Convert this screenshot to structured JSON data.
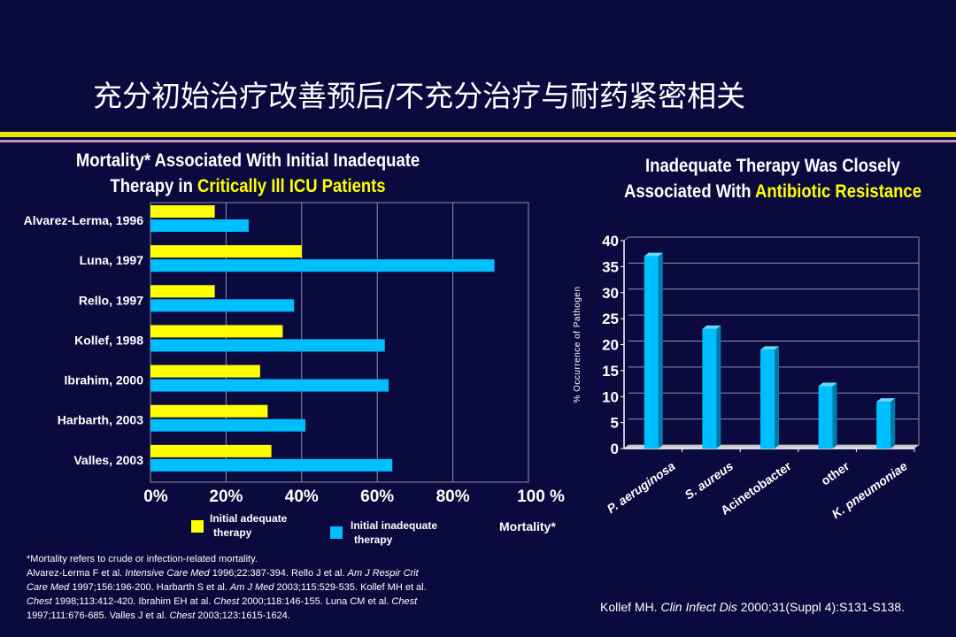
{
  "slide": {
    "title": "充分初始治疗改善预后/不充分治疗与耐药紧密相关",
    "colors": {
      "background": "#0a0a3e",
      "accent_yellow": "#ffff00",
      "accent_cyan": "#00bfff",
      "accent_purple": "#c090c8"
    }
  },
  "left_chart": {
    "title_line1": "Mortality* Associated With Initial Inadequate",
    "title_line2_plain": "Therapy in ",
    "title_line2_highlight": "Critically Ill ICU Patients",
    "x_axis_label": "Mortality*",
    "legend": {
      "adequate_line1": "Initial adequate",
      "adequate_line2": "therapy",
      "inadequate_line1": "Initial inadequate",
      "inadequate_line2": "therapy"
    }
  },
  "right_chart": {
    "title_line1": "Inadequate Therapy Was Closely",
    "title_line2_plain": "Associated With ",
    "title_line2_highlight": "Antibiotic Resistance",
    "y_axis_label": "% Occurrence of Pathogen"
  },
  "chart_data": [
    {
      "type": "bar",
      "orientation": "horizontal",
      "title": "Mortality* Associated With Initial Inadequate Therapy in Critically Ill ICU Patients",
      "xlabel": "Mortality*",
      "categories": [
        "Alvarez-Lerma, 1996",
        "Luna, 1997",
        "Rello, 1997",
        "Kollef, 1998",
        "Ibrahim, 2000",
        "Harbarth, 2003",
        "Valles, 2003"
      ],
      "series": [
        {
          "name": "Initial adequate therapy",
          "color": "#ffff00",
          "values": [
            17,
            40,
            17,
            35,
            29,
            31,
            32
          ]
        },
        {
          "name": "Initial inadequate therapy",
          "color": "#00bfff",
          "values": [
            26,
            91,
            38,
            62,
            63,
            41,
            64
          ]
        }
      ],
      "xlim": [
        0,
        100
      ],
      "x_tick_labels": [
        "0%",
        "20%",
        "40%",
        "60%",
        "80%",
        "100 %"
      ],
      "grid": "vertical"
    },
    {
      "type": "bar",
      "ylabel": "% Occurrence of Pathogen",
      "categories": [
        "P. aeruginosa",
        "S. aureus",
        "Acinetobacter",
        "other",
        "K. pneumoniae"
      ],
      "values": [
        37,
        23,
        19,
        12,
        9
      ],
      "color": "#00bfff",
      "ylim": [
        0,
        40
      ],
      "y_ticks": [
        0,
        5,
        10,
        15,
        20,
        25,
        30,
        35,
        40
      ],
      "grid": "horizontal"
    }
  ],
  "footnote": {
    "line1": "*Mortality refers to crude or infection-related mortality.",
    "line2_a": "Alvarez-Lerma F et al. ",
    "line2_b": "Intensive Care Med",
    "line2_c": " 1996;22:387-394. Rello J et al. ",
    "line2_d": "Am J Respir Crit",
    "line3_a": "Care Med",
    "line3_b": " 1997;156:196-200. Harbarth S et al. ",
    "line3_c": "Am J Med",
    "line3_d": " 2003;115:529-535. Kollef  MH et al.",
    "line4_a": "Chest",
    "line4_b": " 1998;113:412-420. Ibrahim EH at al. ",
    "line4_c": "Chest",
    "line4_d": " 2000;118:146-155. Luna CM et al. ",
    "line4_e": "Chest",
    "line5_a": "1997;111:676-685. Valles J et al. ",
    "line5_b": "Chest",
    "line5_c": " 2003;123:1615-1624."
  },
  "citation": {
    "a": "Kollef MH. ",
    "b": "Clin Infect Dis",
    "c": " 2000;31(Suppl 4):S131-S138."
  }
}
